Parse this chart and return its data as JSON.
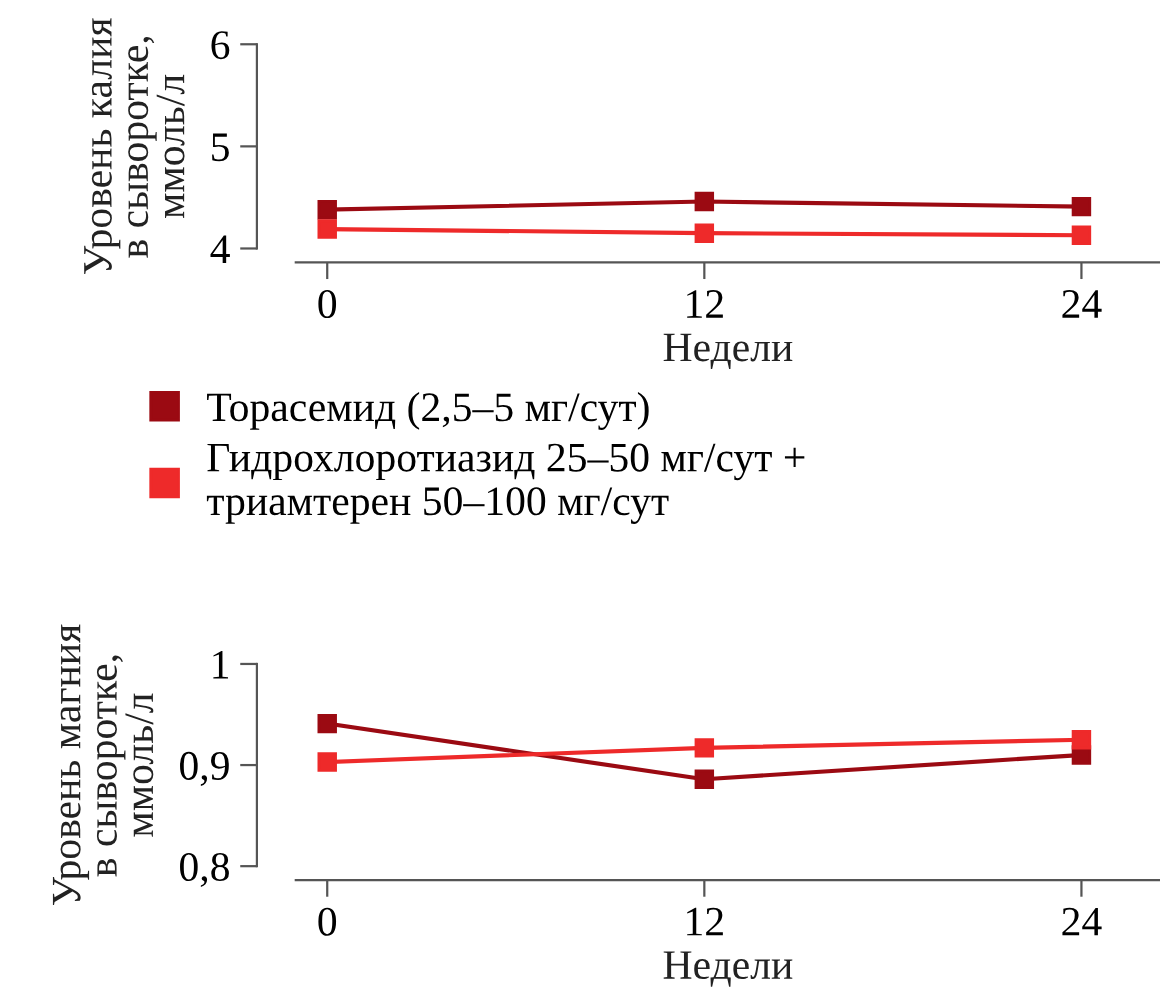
{
  "chart_data": [
    {
      "type": "line",
      "x": [
        0,
        12,
        24
      ],
      "xlim": [
        -1,
        26.5
      ],
      "xticks": [
        0,
        12,
        24
      ],
      "ylim": [
        4,
        6
      ],
      "yticks": [
        4,
        5,
        6
      ],
      "xlabel": "Недели",
      "ylabel": "Уровень калия\nв сыворотке,\nммоль/л",
      "marker": "square",
      "grid": false,
      "legend": "bottom",
      "series": [
        {
          "name": "Торасемид (2,5–5 мг/сут)",
          "color": "#9b0a12",
          "values": [
            4.38,
            4.46,
            4.41
          ]
        },
        {
          "name": "Гидрохлоротиазид 25–50 мг/сут +\nтриамтерен 50–100 мг/сут",
          "color": "#ee2a2a",
          "values": [
            4.19,
            4.15,
            4.13
          ]
        }
      ]
    },
    {
      "type": "line",
      "x": [
        0,
        12,
        24
      ],
      "xlim": [
        -1,
        26.5
      ],
      "xticks": [
        0,
        12,
        24
      ],
      "ylim": [
        0.8,
        1.0
      ],
      "yticks": [
        {
          "value": 0.8,
          "label": "0,8"
        },
        {
          "value": 0.9,
          "label": "0,9"
        },
        {
          "value": 1.0,
          "label": "1"
        }
      ],
      "xlabel": "Недели",
      "ylabel": "Уровень магния\nв сыворотке,\nммоль/л",
      "marker": "square",
      "grid": false,
      "series": [
        {
          "color": "#9b0a12",
          "values": [
            0.941,
            0.886,
            0.91
          ]
        },
        {
          "color": "#ee2a2a",
          "values": [
            0.903,
            0.917,
            0.925
          ]
        }
      ]
    }
  ]
}
